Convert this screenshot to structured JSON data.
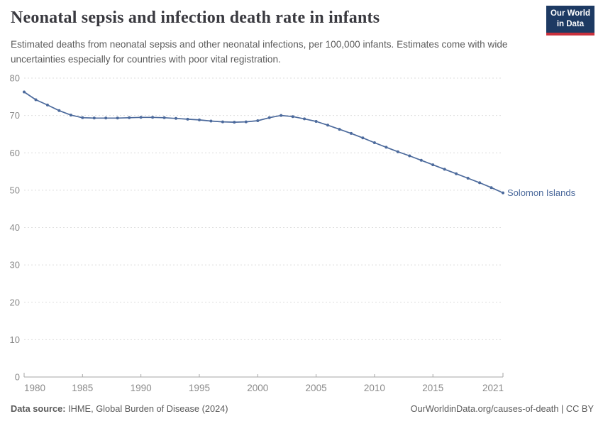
{
  "header": {
    "title": "Neonatal sepsis and infection death rate in infants",
    "subtitle": "Estimated deaths from neonatal sepsis and other neonatal infections, per 100,000 infants. Estimates come with wide uncertainties especially for countries with poor vital registration.",
    "logo": {
      "line1": "Our World",
      "line2": "in Data",
      "bg_color": "#1d3a63",
      "accent_color": "#c9303c"
    }
  },
  "chart_data": {
    "type": "line",
    "title": "Neonatal sepsis and infection death rate in infants",
    "xlabel": "",
    "ylabel": "",
    "xlim": [
      1980,
      2021
    ],
    "ylim": [
      0,
      80
    ],
    "grid": "horizontal-dashed",
    "legend_position": "end-of-line-label",
    "x_ticks": [
      1980,
      1985,
      1990,
      1995,
      2000,
      2005,
      2010,
      2015,
      2021
    ],
    "y_ticks": [
      0,
      10,
      20,
      30,
      40,
      50,
      60,
      70,
      80
    ],
    "series": [
      {
        "name": "Solomon Islands",
        "color": "#4c6a9c",
        "x": [
          1980,
          1981,
          1982,
          1983,
          1984,
          1985,
          1986,
          1987,
          1988,
          1989,
          1990,
          1991,
          1992,
          1993,
          1994,
          1995,
          1996,
          1997,
          1998,
          1999,
          2000,
          2001,
          2002,
          2003,
          2004,
          2005,
          2006,
          2007,
          2008,
          2009,
          2010,
          2011,
          2012,
          2013,
          2014,
          2015,
          2016,
          2017,
          2018,
          2019,
          2020,
          2021
        ],
        "values": [
          76.3,
          74.2,
          72.8,
          71.3,
          70.1,
          69.4,
          69.3,
          69.3,
          69.3,
          69.4,
          69.5,
          69.5,
          69.4,
          69.2,
          69.0,
          68.8,
          68.5,
          68.3,
          68.2,
          68.3,
          68.6,
          69.4,
          70.0,
          69.7,
          69.1,
          68.4,
          67.4,
          66.3,
          65.2,
          64.0,
          62.7,
          61.5,
          60.3,
          59.2,
          58.0,
          56.8,
          55.6,
          54.4,
          53.2,
          52.0,
          50.7,
          49.3
        ]
      }
    ],
    "end_label": "Solomon Islands",
    "colors": {
      "line": "#4c6a9c",
      "gridline": "#dedede",
      "axis_line": "#a6a6a6",
      "tick_label": "#8a8a8a",
      "end_label": "#4c6a9c"
    }
  },
  "footer": {
    "data_source_label": "Data source:",
    "data_source_value": " IHME, Global Burden of Disease (2024)",
    "link": "OurWorldinData.org/causes-of-death | CC BY"
  }
}
